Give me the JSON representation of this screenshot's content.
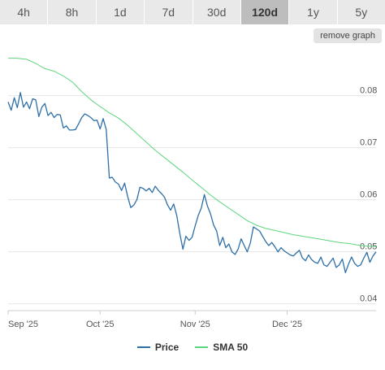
{
  "tabs": [
    {
      "label": "4h",
      "active": false
    },
    {
      "label": "8h",
      "active": false
    },
    {
      "label": "1d",
      "active": false
    },
    {
      "label": "7d",
      "active": false
    },
    {
      "label": "30d",
      "active": false
    },
    {
      "label": "120d",
      "active": true
    },
    {
      "label": "1y",
      "active": false
    },
    {
      "label": "5y",
      "active": false
    }
  ],
  "remove_button_label": "remove graph",
  "legend": [
    {
      "label": "Price",
      "color": "#2e6fa7"
    },
    {
      "label": "SMA 50",
      "color": "#5ed67f"
    }
  ],
  "colors": {
    "price": "#2e6fa7",
    "sma": "#5ed67f",
    "grid": "#e6e6e6",
    "axis_text": "#555555"
  },
  "chart_data": {
    "type": "line",
    "x_axis_labels": [
      "Sep '25",
      "Oct '25",
      "Nov '25",
      "Dec '25"
    ],
    "x_axis_label_days": [
      0,
      30,
      61,
      91
    ],
    "y_axis_labels": [
      "0.08",
      "0.07",
      "0.06",
      "0.05",
      "0.04"
    ],
    "y_axis_label_values": [
      0.08,
      0.07,
      0.06,
      0.05,
      0.04
    ],
    "ylim": [
      0.0387,
      0.0887
    ],
    "xlim": [
      0,
      120
    ],
    "grid": true,
    "legend_position": "bottom",
    "series": [
      {
        "name": "Price",
        "x": [
          0,
          1,
          2,
          3,
          4,
          5,
          6,
          7,
          8,
          9,
          10,
          11,
          12,
          13,
          14,
          15,
          16,
          17,
          18,
          19,
          20,
          21,
          22,
          23,
          24,
          25,
          26,
          27,
          28,
          29,
          30,
          31,
          32,
          33,
          34,
          35,
          36,
          37,
          38,
          39,
          40,
          41,
          42,
          43,
          44,
          45,
          46,
          47,
          48,
          49,
          50,
          51,
          52,
          53,
          54,
          55,
          56,
          57,
          58,
          59,
          60,
          61,
          62,
          63,
          64,
          65,
          66,
          67,
          68,
          69,
          70,
          71,
          72,
          73,
          74,
          75,
          76,
          77,
          78,
          79,
          80,
          81,
          82,
          83,
          84,
          85,
          86,
          87,
          88,
          89,
          90,
          91,
          92,
          93,
          94,
          95,
          96,
          97,
          98,
          99,
          100,
          101,
          102,
          103,
          104,
          105,
          106,
          107,
          108,
          109,
          110,
          111,
          112,
          113,
          114,
          115,
          116,
          117,
          118,
          119,
          120
        ],
        "values": [
          0.0788,
          0.0772,
          0.0796,
          0.0777,
          0.0806,
          0.0778,
          0.0788,
          0.0775,
          0.0794,
          0.0792,
          0.076,
          0.0778,
          0.0785,
          0.0762,
          0.0768,
          0.0758,
          0.0764,
          0.0763,
          0.0738,
          0.0742,
          0.0734,
          0.0734,
          0.0735,
          0.0746,
          0.0758,
          0.0765,
          0.0762,
          0.0758,
          0.0752,
          0.0753,
          0.0736,
          0.0756,
          0.0735,
          0.0642,
          0.0643,
          0.0634,
          0.063,
          0.0618,
          0.0632,
          0.0606,
          0.0585,
          0.059,
          0.06,
          0.0624,
          0.0622,
          0.0617,
          0.0622,
          0.0614,
          0.0626,
          0.0618,
          0.0612,
          0.0605,
          0.059,
          0.058,
          0.0592,
          0.057,
          0.0535,
          0.0505,
          0.053,
          0.0522,
          0.0528,
          0.055,
          0.057,
          0.0584,
          0.061,
          0.0588,
          0.0573,
          0.0552,
          0.054,
          0.0512,
          0.0528,
          0.0508,
          0.0515,
          0.05,
          0.0495,
          0.0505,
          0.0525,
          0.0512,
          0.05,
          0.0517,
          0.0548,
          0.0544,
          0.054,
          0.053,
          0.052,
          0.0512,
          0.0518,
          0.051,
          0.05,
          0.0508,
          0.0502,
          0.0498,
          0.0494,
          0.0492,
          0.0498,
          0.0503,
          0.0488,
          0.0483,
          0.0494,
          0.0485,
          0.048,
          0.0478,
          0.049,
          0.0475,
          0.0472,
          0.048,
          0.0488,
          0.047,
          0.0475,
          0.0486,
          0.046,
          0.0476,
          0.049,
          0.0478,
          0.0472,
          0.0475,
          0.0488,
          0.0499,
          0.048,
          0.0492,
          0.05
        ]
      },
      {
        "name": "SMA 50",
        "x": [
          0,
          3,
          6,
          9,
          12,
          15,
          18,
          21,
          24,
          27,
          30,
          33,
          36,
          39,
          42,
          45,
          48,
          51,
          54,
          57,
          60,
          63,
          66,
          69,
          72,
          75,
          78,
          81,
          84,
          87,
          90,
          93,
          96,
          99,
          102,
          105,
          108,
          111,
          114,
          117,
          120
        ],
        "values": [
          0.0872,
          0.0872,
          0.087,
          0.0862,
          0.0852,
          0.0847,
          0.0838,
          0.0826,
          0.0808,
          0.0792,
          0.0779,
          0.0767,
          0.0757,
          0.0743,
          0.0727,
          0.0711,
          0.0695,
          0.0681,
          0.0667,
          0.0653,
          0.0638,
          0.0624,
          0.0609,
          0.0596,
          0.0584,
          0.0572,
          0.056,
          0.0551,
          0.0545,
          0.0541,
          0.0537,
          0.0533,
          0.053,
          0.0527,
          0.0524,
          0.0521,
          0.0518,
          0.0516,
          0.0513,
          0.0511,
          0.051
        ]
      }
    ]
  }
}
